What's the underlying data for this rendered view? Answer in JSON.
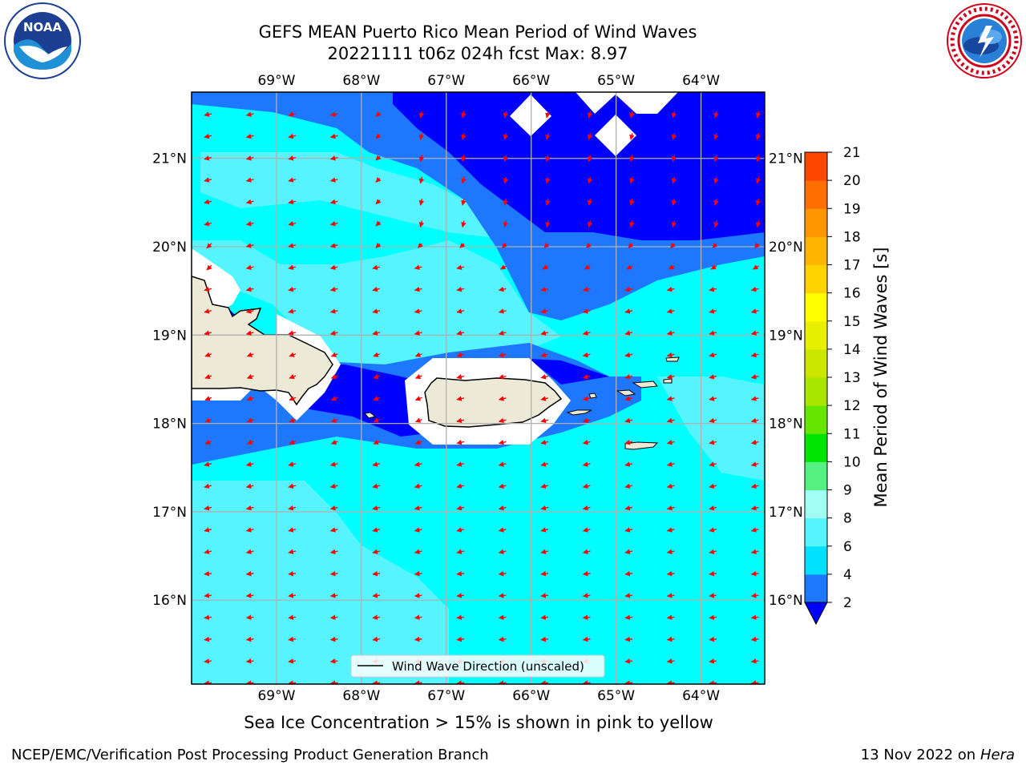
{
  "header": {
    "title": "GEFS MEAN Puerto Rico Mean Period of Wind Waves",
    "subtitle": "20221111 t06z 024h fcst   Max: 8.97"
  },
  "logos": {
    "noaa": {
      "text": "NOAA",
      "icon": "noaa-logo"
    },
    "nws": {
      "icon": "nws-logo"
    }
  },
  "footer": {
    "sea_ice_note": "Sea Ice Concentration > 15% is shown in pink to yellow",
    "branch": "NCEP/EMC/Verification Post Processing Product Generation Branch",
    "date": "13 Nov 2022 on",
    "host": "Hera"
  },
  "chart_data": {
    "type": "heatmap",
    "title": "GEFS MEAN Puerto Rico Mean Period of Wind Waves",
    "max_value": 8.97,
    "region": "Puerto Rico",
    "lon_range": [
      -70.0,
      -63.25
    ],
    "lat_range": [
      15.05,
      21.75
    ],
    "x_ticks": [
      "69°W",
      "68°W",
      "67°W",
      "66°W",
      "65°W",
      "64°W"
    ],
    "x_tick_values": [
      -69,
      -68,
      -67,
      -66,
      -65,
      -64
    ],
    "y_ticks": [
      "21°N",
      "20°N",
      "19°N",
      "18°N",
      "17°N",
      "16°N"
    ],
    "y_tick_values": [
      21,
      20,
      19,
      18,
      17,
      16
    ],
    "grid": true,
    "legend": {
      "label": "Wind Wave Direction (unscaled)",
      "placement": "bottom-center"
    },
    "colorbar": {
      "label": "Mean Period of Wind Waves [s]",
      "levels": [
        2,
        3,
        4,
        5,
        6,
        7,
        8,
        9,
        10,
        11,
        12,
        13,
        14,
        15,
        16,
        17,
        18,
        19,
        20,
        21
      ],
      "tick_labels": [
        "2",
        "4",
        "6",
        "8",
        "9",
        "10",
        "11",
        "12",
        "13",
        "14",
        "15",
        "16",
        "17",
        "18",
        "19",
        "20",
        "21"
      ],
      "colors": [
        "#1e78ff",
        "#00e0ff",
        "#55f4ff",
        "#a0fff2",
        "#55f082",
        "#00e600",
        "#66e600",
        "#a8e600",
        "#cce600",
        "#e8f000",
        "#ffff00",
        "#ffd200",
        "#ffb400",
        "#ff9600",
        "#ff6e00",
        "#ff4600",
        "#ff1400",
        "#fa0000"
      ],
      "under_color": "#0000ff"
    },
    "period_classes": [
      {
        "range": "<2 s",
        "color": "#0000ff",
        "area": "north-east Atlantic and Mona Passage"
      },
      {
        "range": "2-4 s",
        "color": "#1e78ff",
        "area": "north band and south coast"
      },
      {
        "range": "4-6 s",
        "color": "#00ffff",
        "area": "Caribbean Sea"
      },
      {
        "range": "6-8 s",
        "color": "#55f4ff",
        "area": "scattered patches"
      }
    ],
    "arrow_color": "#ff0000",
    "land_color": "#ede9d7"
  }
}
